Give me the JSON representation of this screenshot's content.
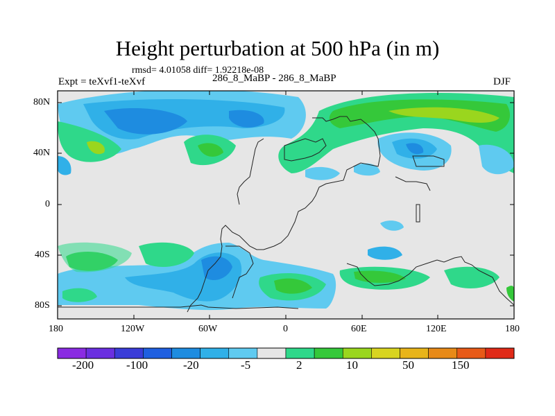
{
  "title": "Height perturbation at 500 hPa (in m)",
  "stats": "rmsd= 4.01058 diff= 1.92218e-08",
  "left_label": "Expt = teXvf1-teXvf",
  "center_label": "286_8_MaBP - 286_8_MaBP",
  "right_label": "DJF",
  "y_ticks": [
    "80N",
    "40N",
    "0",
    "40S",
    "80S"
  ],
  "x_ticks": [
    "180",
    "120W",
    "60W",
    "0",
    "60E",
    "120E",
    "180"
  ],
  "colorbar": {
    "colors": [
      "#8a2be2",
      "#6a2fe0",
      "#3a3cd8",
      "#1f5fe0",
      "#1e8ce0",
      "#30b0e8",
      "#5fcaf0",
      "#e6e6e6",
      "#2fd88a",
      "#35c83a",
      "#9ad61e",
      "#d8d420",
      "#e8b41a",
      "#e88a18",
      "#e85a18",
      "#e02a18"
    ],
    "labels": [
      "-200",
      "-100",
      "-20",
      "-5",
      "2",
      "10",
      "50",
      "150"
    ]
  },
  "chart_data": {
    "type": "heatmap",
    "title": "Height perturbation at 500 hPa (in m)",
    "x_range": [
      -180,
      180
    ],
    "y_range": [
      -90,
      90
    ],
    "units": "m",
    "season": "DJF",
    "levels": [
      -200,
      -100,
      -20,
      -5,
      2,
      10,
      50,
      150
    ]
  }
}
